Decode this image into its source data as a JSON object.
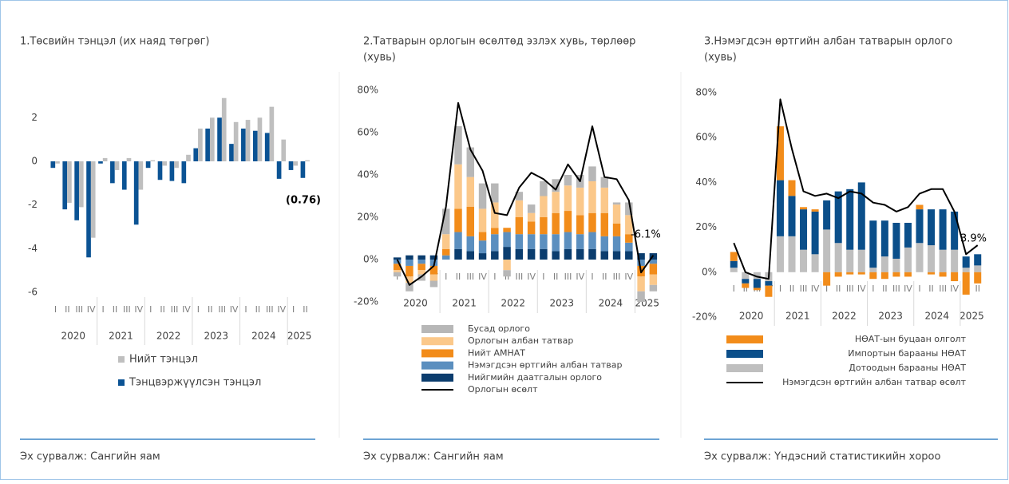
{
  "chart_data": [
    {
      "type": "bar",
      "title": "1.Төсвийн тэнцэл (их наяд төгрөг)",
      "categories": [
        "I",
        "II",
        "III",
        "IV",
        "I",
        "II",
        "III",
        "IV",
        "I",
        "II",
        "III",
        "IV",
        "I",
        "II",
        "III",
        "IV",
        "I",
        "II",
        "III",
        "IV",
        "I",
        "II"
      ],
      "groups": [
        "2020",
        "2021",
        "2022",
        "2023",
        "2024",
        "2025"
      ],
      "series": [
        {
          "name": "Тэнцвэржүүлсэн тэнцэл",
          "color": "#0b5394",
          "values": [
            -0.3,
            -2.2,
            -2.7,
            -4.4,
            -0.1,
            -1.0,
            -1.3,
            -2.9,
            -0.3,
            -0.85,
            -0.9,
            -1.0,
            0.6,
            1.5,
            2.0,
            0.8,
            1.5,
            1.4,
            1.3,
            -0.8,
            -0.4,
            -0.76
          ]
        },
        {
          "name": "Нийт тэнцэл",
          "color": "#bfbfbf",
          "values": [
            -0.1,
            -1.9,
            -2.1,
            -3.5,
            0.15,
            -0.4,
            0.15,
            -1.3,
            0.05,
            -0.2,
            -0.3,
            0.3,
            1.5,
            2.0,
            2.9,
            1.8,
            1.9,
            2.0,
            2.5,
            1.0,
            -0.2,
            0.05
          ]
        }
      ],
      "annotation": "(0.76)",
      "ylim": [
        -6,
        3
      ],
      "yticks": [
        -6,
        -4,
        -2,
        0,
        2
      ],
      "source": "Эх сурвалж: Сангийн яам"
    },
    {
      "type": "stacked",
      "title": "2.Татварын орлогын өсөлтөд эзлэх хувь, төрлөөр",
      "subtitle": "(хувь)",
      "categories": [
        "I",
        "II",
        "III",
        "IV",
        "I",
        "II",
        "III",
        "IV",
        "I",
        "II",
        "III",
        "IV",
        "I",
        "II",
        "III",
        "IV",
        "I",
        "II",
        "III",
        "IV",
        "I",
        "II"
      ],
      "groups": [
        "2020",
        "2021",
        "2022",
        "2023",
        "2024",
        "2025"
      ],
      "series": [
        {
          "name": "Нийгмийн даатгалын орлого",
          "color": "#0b3d6e",
          "values": [
            1,
            2,
            2,
            2,
            0,
            5,
            4,
            3,
            4,
            6,
            5,
            5,
            5,
            4,
            5,
            5,
            5,
            4,
            4,
            4,
            3,
            3
          ]
        },
        {
          "name": "Нэмэгдсэн өртгийн албан татвар",
          "color": "#5b8fbf",
          "values": [
            -2,
            -3,
            -2,
            -3,
            2,
            8,
            7,
            6,
            8,
            7,
            7,
            7,
            7,
            8,
            8,
            7,
            8,
            7,
            7,
            4,
            -3,
            -2
          ]
        },
        {
          "name": "Нийт АМНАТ",
          "color": "#f28c1a",
          "values": [
            -3,
            -5,
            -3,
            -4,
            3,
            11,
            14,
            4,
            3,
            2,
            8,
            6,
            8,
            10,
            10,
            9,
            9,
            11,
            6,
            4,
            -5,
            -5
          ]
        },
        {
          "name": "Орлогын албан татвар",
          "color": "#fbc88a",
          "values": [
            -1,
            -3,
            -2,
            -3,
            7,
            21,
            14,
            11,
            12,
            -5,
            8,
            4,
            10,
            10,
            12,
            13,
            15,
            12,
            9,
            9,
            -7,
            -5
          ]
        },
        {
          "name": "Бусад орлого",
          "color": "#b7b7b7",
          "values": [
            -2,
            -4,
            -3,
            -3,
            12,
            18,
            14,
            12,
            9,
            -3,
            4,
            4,
            7,
            6,
            5,
            6,
            7,
            5,
            1,
            6,
            -5,
            -3
          ]
        },
        {
          "name": "Орлогын өсөлт",
          "color": "#000000",
          "type": "line",
          "values": [
            0,
            -12,
            -8,
            -3,
            25,
            74,
            52,
            42,
            22,
            21,
            34,
            41,
            38,
            33,
            45,
            37,
            63,
            39,
            38,
            28,
            -6.1,
            2
          ]
        }
      ],
      "annotation": "-6.1%",
      "ylim": [
        -20,
        80
      ],
      "yticks": [
        {
          "value": -20,
          "label": "-20%"
        },
        {
          "value": 0,
          "label": "0%"
        },
        {
          "value": 20,
          "label": "20%"
        },
        {
          "value": 40,
          "label": "40%"
        },
        {
          "value": 60,
          "label": "60%"
        },
        {
          "value": 80,
          "label": "80%"
        }
      ],
      "source": "Эх сурвалж: Сангийн яам"
    },
    {
      "type": "stacked",
      "title": "3.Нэмэгдсэн өртгийн албан татварын орлого",
      "subtitle": "(хувь)",
      "categories": [
        "I",
        "II",
        "III",
        "IV",
        "I",
        "II",
        "III",
        "IV",
        "I",
        "II",
        "III",
        "IV",
        "I",
        "II",
        "III",
        "IV",
        "I",
        "II",
        "III",
        "IV",
        "I",
        "II"
      ],
      "groups": [
        "2020",
        "2021",
        "2022",
        "2023",
        "2024",
        "2025"
      ],
      "series": [
        {
          "name": "Дотоодын барааны НӨАТ",
          "color": "#bfbfbf",
          "values": [
            2,
            -3,
            -3,
            -4,
            16,
            16,
            10,
            8,
            19,
            13,
            10,
            10,
            2,
            7,
            6,
            11,
            13,
            12,
            10,
            10,
            2,
            3
          ]
        },
        {
          "name": "Импортын барааны НӨАТ",
          "color": "#0b4f8a",
          "values": [
            3,
            -2,
            -4,
            -2,
            25,
            18,
            18,
            19,
            13,
            23,
            27,
            30,
            21,
            16,
            16,
            11,
            15,
            16,
            18,
            17,
            5,
            5
          ]
        },
        {
          "name": "НӨАТ-ын буцаан олголт",
          "color": "#f28c1a",
          "values": [
            4,
            -2,
            -1,
            -5,
            24,
            7,
            1,
            1,
            -6,
            -2,
            -1,
            -1,
            -3,
            -3,
            -2,
            -2,
            2,
            -1,
            -2,
            -4,
            -10,
            -5
          ]
        },
        {
          "name": "Нэмэгдсэн өртгийн албан татвар өсөлт",
          "color": "#000000",
          "type": "line",
          "values": [
            13,
            0,
            -2,
            -3,
            77,
            55,
            36,
            34,
            35,
            33,
            36,
            35,
            31,
            30,
            27,
            29,
            35,
            37,
            37,
            27,
            8,
            12
          ]
        }
      ],
      "annotation": "3.9%",
      "ylim": [
        -20,
        80
      ],
      "yticks": [
        {
          "value": -20,
          "label": "-20%"
        },
        {
          "value": 0,
          "label": "0%"
        },
        {
          "value": 20,
          "label": "20%"
        },
        {
          "value": 40,
          "label": "40%"
        },
        {
          "value": 60,
          "label": "60%"
        },
        {
          "value": 80,
          "label": "80%"
        }
      ],
      "source": "Эх сурвалж: Үндэсний статистикийн хороо"
    }
  ]
}
